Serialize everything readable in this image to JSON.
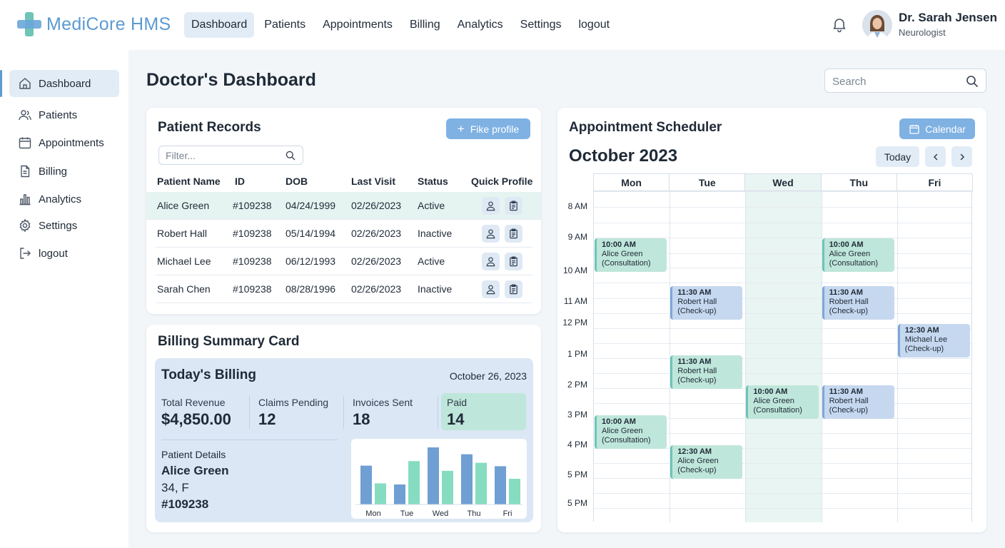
{
  "app": {
    "name": "MediCore HMS"
  },
  "topnav": [
    "Dashboard",
    "Patients",
    "Appointments",
    "Billing",
    "Analytics",
    "Settings",
    "logout"
  ],
  "user": {
    "name": "Dr. Sarah Jensen",
    "role": "Neurologist"
  },
  "sidebar": [
    {
      "label": "Dashboard",
      "icon": "home-icon",
      "active": true
    },
    {
      "label": "Patients",
      "icon": "users-icon"
    },
    {
      "label": "Appointments",
      "icon": "calendar-icon"
    },
    {
      "label": "Billing",
      "icon": "document-icon"
    },
    {
      "label": "Analytics",
      "icon": "bar-chart-icon"
    },
    {
      "label": "Settings",
      "icon": "gear-icon"
    },
    {
      "label": "logout",
      "icon": "logout-icon"
    }
  ],
  "page": {
    "title": "Doctor's Dashboard",
    "search_placeholder": "Search"
  },
  "patient_records": {
    "title": "Patient Records",
    "button": "Fike profile",
    "filter_placeholder": "Filter...",
    "columns": [
      "Patient Name",
      "ID",
      "DOB",
      "Last Visit",
      "Status",
      "Quick Profile"
    ],
    "rows": [
      {
        "name": "Alice Green",
        "id": "#109238",
        "dob": "04/24/1999",
        "last_visit": "02/26/2023",
        "status": "Active"
      },
      {
        "name": "Robert Hall",
        "id": "#109238",
        "dob": "05/14/1994",
        "last_visit": "02/26/2023",
        "status": "Inactive"
      },
      {
        "name": "Michael Lee",
        "id": "#109238",
        "dob": "06/12/1993",
        "last_visit": "02/26/2023",
        "status": "Active"
      },
      {
        "name": "Sarah Chen",
        "id": "#109238",
        "dob": "08/28/1996",
        "last_visit": "02/26/2023",
        "status": "Inactive"
      }
    ]
  },
  "billing": {
    "title": "Billing Summary Card",
    "today_title": "Today's Billing",
    "date": "October 26, 2023",
    "stats": [
      {
        "label": "Total Revenue",
        "value": "$4,850.00"
      },
      {
        "label": "Claims Pending",
        "value": "12"
      },
      {
        "label": "Invoices Sent",
        "value": "18"
      },
      {
        "label": "Paid",
        "value": "14"
      }
    ],
    "patient_details": {
      "label": "Patient Details",
      "name": "Alice Green",
      "meta": "34,  F",
      "id": "#109238"
    }
  },
  "chart_data": {
    "type": "bar",
    "categories": [
      "Mon",
      "Tue",
      "Wed",
      "Thu",
      "Fri"
    ],
    "series": [
      {
        "values": [
          0.68,
          0.35,
          1.0,
          0.88,
          0.67
        ],
        "color": "#6f9fd3"
      },
      {
        "values": [
          0.37,
          0.76,
          0.59,
          0.73,
          0.45
        ],
        "color": "#86dcc1"
      }
    ],
    "ylim": [
      0,
      1
    ]
  },
  "scheduler": {
    "title": "Appointment Scheduler",
    "button": "Calendar",
    "month": "October 2023",
    "today": "Today",
    "days": [
      "Mon",
      "Tue",
      "Wed",
      "Thu",
      "Fri"
    ],
    "times": [
      "8 AM",
      "9 AM",
      "10 AM",
      "11 AM",
      "12 PM",
      "1 PM",
      "2 PM",
      "3 PM",
      "4 PM",
      "5 PM",
      "5 PM"
    ],
    "events": [
      {
        "day": 0,
        "slot": 1,
        "time": "10:00 AM",
        "name": "Alice Green",
        "type": "(Consultation)",
        "color": "green"
      },
      {
        "day": 3,
        "slot": 1,
        "time": "10:00 AM",
        "name": "Alice Green",
        "type": "(Consultation)",
        "color": "green"
      },
      {
        "day": 1,
        "slot": 2.6,
        "time": "11:30 AM",
        "name": "Robert Hall",
        "type": "(Check-up)",
        "color": "blue"
      },
      {
        "day": 3,
        "slot": 2.6,
        "time": "11:30 AM",
        "name": "Robert Hall",
        "type": "(Check-up)",
        "color": "blue"
      },
      {
        "day": 4,
        "slot": 3.85,
        "time": "12:30 AM",
        "name": "Michael Lee",
        "type": "(Check-up)",
        "color": "blue"
      },
      {
        "day": 1,
        "slot": 4.9,
        "time": "11:30 AM",
        "name": "Robert Hall",
        "type": "(Check-up)",
        "color": "green"
      },
      {
        "day": 2,
        "slot": 5.9,
        "time": "10:00 AM",
        "name": "Alice Green",
        "type": "(Consultation)",
        "color": "green"
      },
      {
        "day": 3,
        "slot": 5.9,
        "time": "11:30 AM",
        "name": "Robert Hall",
        "type": "(Check-up)",
        "color": "blue"
      },
      {
        "day": 0,
        "slot": 6.9,
        "time": "10:00 AM",
        "name": "Alice Green",
        "type": "(Consultation)",
        "color": "green"
      },
      {
        "day": 1,
        "slot": 7.9,
        "time": "12:30 AM",
        "name": "Alice Green",
        "type": "(Check-up)",
        "color": "green"
      }
    ]
  }
}
